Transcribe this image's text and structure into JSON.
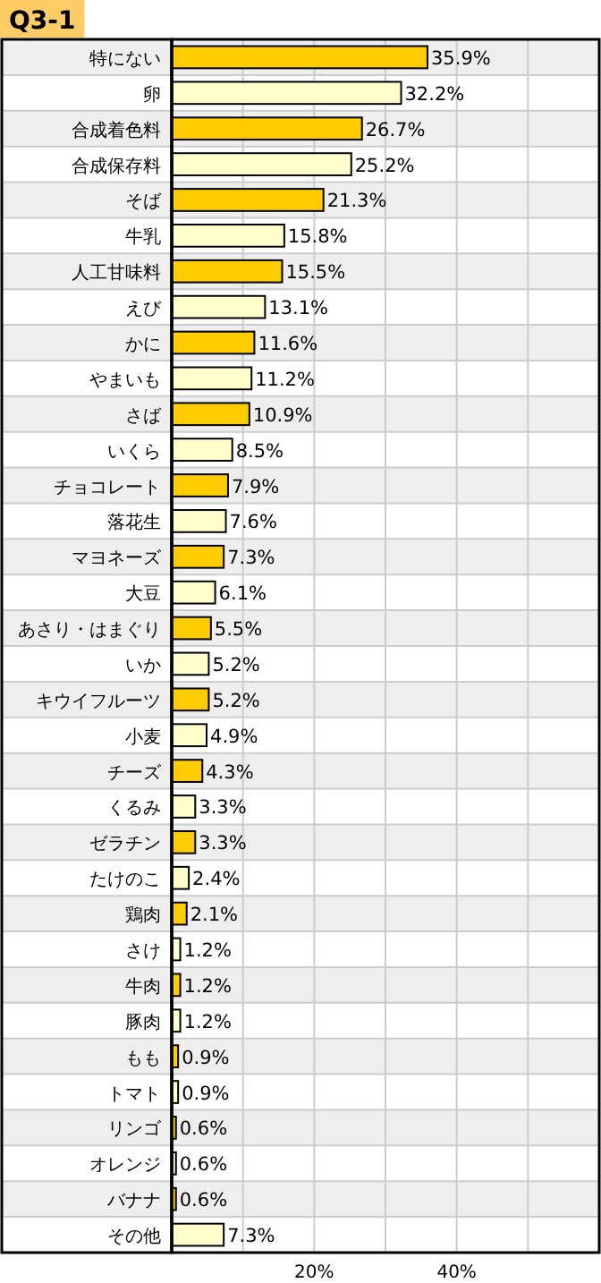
{
  "chart_data": {
    "type": "bar",
    "orientation": "horizontal",
    "title": "Q3-1",
    "categories": [
      "特にない",
      "卵",
      "合成着色料",
      "合成保存料",
      "そば",
      "牛乳",
      "人工甘味料",
      "えび",
      "かに",
      "やまいも",
      "さば",
      "いくら",
      "チョコレート",
      "落花生",
      "マヨネーズ",
      "大豆",
      "あさり・はまぐり",
      "いか",
      "キウイフルーツ",
      "小麦",
      "チーズ",
      "くるみ",
      "ゼラチン",
      "たけのこ",
      "鶏肉",
      "さけ",
      "牛肉",
      "豚肉",
      "もも",
      "トマト",
      "リンゴ",
      "オレンジ",
      "バナナ",
      "その他"
    ],
    "values": [
      35.9,
      32.2,
      26.7,
      25.2,
      21.3,
      15.8,
      15.5,
      13.1,
      11.6,
      11.2,
      10.9,
      8.5,
      7.9,
      7.6,
      7.3,
      6.1,
      5.5,
      5.2,
      5.2,
      4.9,
      4.3,
      3.3,
      3.3,
      2.4,
      2.1,
      1.2,
      1.2,
      1.2,
      0.9,
      0.9,
      0.6,
      0.6,
      0.6,
      7.3
    ],
    "value_labels": [
      "35.9%",
      "32.2%",
      "26.7%",
      "25.2%",
      "21.3%",
      "15.8%",
      "15.5%",
      "13.1%",
      "11.6%",
      "11.2%",
      "10.9%",
      "8.5%",
      "7.9%",
      "7.6%",
      "7.3%",
      "6.1%",
      "5.5%",
      "5.2%",
      "5.2%",
      "4.9%",
      "4.3%",
      "3.3%",
      "3.3%",
      "2.4%",
      "2.1%",
      "1.2%",
      "1.2%",
      "1.2%",
      "0.9%",
      "0.9%",
      "0.6%",
      "0.6%",
      "0.6%",
      "7.3%"
    ],
    "colors": [
      "#ffcc00",
      "#ffffcc",
      "#ffcc00",
      "#ffffcc",
      "#ffcc00",
      "#ffffcc",
      "#ffcc00",
      "#ffffcc",
      "#ffcc00",
      "#ffffcc",
      "#ffcc00",
      "#ffffcc",
      "#ffcc00",
      "#ffffcc",
      "#ffcc00",
      "#ffffcc",
      "#ffcc00",
      "#ffffcc",
      "#ffcc00",
      "#ffffcc",
      "#ffcc00",
      "#ffffcc",
      "#ffcc00",
      "#ffffcc",
      "#ffcc00",
      "#ffffcc",
      "#ffcc00",
      "#ffffcc",
      "#ffcc00",
      "#ffffcc",
      "#ffcc00",
      "#ffffcc",
      "#ffcc00",
      "#ffffcc"
    ],
    "xlim": [
      0,
      60
    ],
    "xticks": [
      {
        "value": 10,
        "label": null
      },
      {
        "value": 20,
        "label": "20%"
      },
      {
        "value": 30,
        "label": null
      },
      {
        "value": 40,
        "label": "40%"
      },
      {
        "value": 50,
        "label": null
      }
    ],
    "grid": "x"
  }
}
